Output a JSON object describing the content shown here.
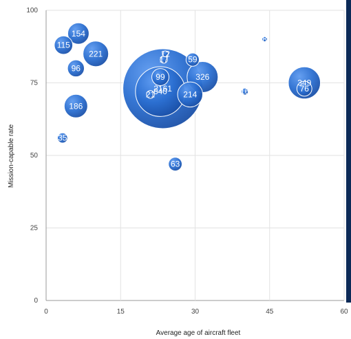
{
  "chart_data": {
    "type": "scatter",
    "title": "",
    "xlabel": "Average age of aircraft fleet",
    "ylabel": "Mission-capable rate",
    "xlim": [
      0,
      60
    ],
    "ylim": [
      0,
      100
    ],
    "xticks": [
      0,
      15,
      30,
      45,
      60
    ],
    "yticks": [
      0,
      25,
      50,
      75,
      100
    ],
    "grid": true,
    "bubble_color": "#2b6fd1",
    "bubble_color_light": "#5d9af0",
    "bubble_color_dark": "#1a4fa6",
    "points": [
      {
        "x": 23.5,
        "y": 73,
        "size": 2161,
        "label": "2161"
      },
      {
        "x": 31.5,
        "y": 77,
        "size": 326,
        "label": "326"
      },
      {
        "x": 52,
        "y": 75,
        "size": 349,
        "label": "349"
      },
      {
        "x": 52,
        "y": 73,
        "size": 76,
        "label": "76"
      },
      {
        "x": 10,
        "y": 85,
        "size": 221,
        "label": "221"
      },
      {
        "x": 29,
        "y": 71,
        "size": 214,
        "label": "214"
      },
      {
        "x": 21,
        "y": 71,
        "size": 21,
        "label": "21"
      },
      {
        "x": 6,
        "y": 67,
        "size": 186,
        "label": "186"
      },
      {
        "x": 6.5,
        "y": 92,
        "size": 154,
        "label": "154"
      },
      {
        "x": 3.5,
        "y": 88,
        "size": 115,
        "label": "115"
      },
      {
        "x": 23,
        "y": 72,
        "size": 840,
        "label": "840"
      },
      {
        "x": 23,
        "y": 77,
        "size": 99,
        "label": "99"
      },
      {
        "x": 6,
        "y": 80,
        "size": 96,
        "label": "96"
      },
      {
        "x": 26,
        "y": 47,
        "size": 63,
        "label": "63"
      },
      {
        "x": 29.5,
        "y": 83,
        "size": 59,
        "label": "59"
      },
      {
        "x": 3.3,
        "y": 56,
        "size": 35,
        "label": "35"
      },
      {
        "x": 24,
        "y": 85,
        "size": 12,
        "label": "12"
      },
      {
        "x": 23.7,
        "y": 83,
        "size": 17,
        "label": "17"
      },
      {
        "x": 40,
        "y": 72,
        "size": 16,
        "label": "16"
      },
      {
        "x": 44,
        "y": 90,
        "size": 8,
        "label": "8"
      }
    ]
  }
}
